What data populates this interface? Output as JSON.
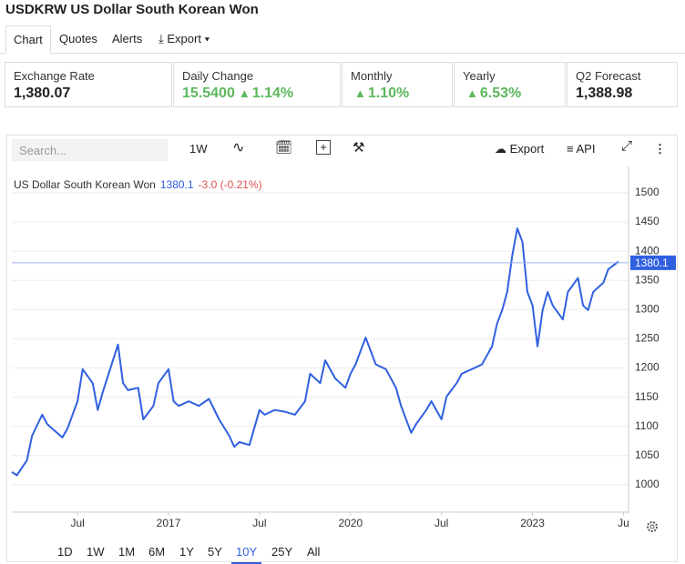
{
  "header": {
    "title": "USDKRW US Dollar South Korean Won"
  },
  "tabs": [
    "Chart",
    "Quotes",
    "Alerts",
    "Export"
  ],
  "stats": [
    {
      "label": "Exchange Rate",
      "value": "1,380.07"
    },
    {
      "label": "Daily Change",
      "value": "15.5400",
      "change": "1.14%"
    },
    {
      "label": "Monthly",
      "change": "1.10%"
    },
    {
      "label": "Yearly",
      "change": "6.53%"
    },
    {
      "label": "Q2 Forecast",
      "value": "1,388.98"
    }
  ],
  "toolbar": {
    "search_placeholder": "Search...",
    "interval": "1W",
    "export": "Export",
    "api": "API"
  },
  "chart_data": {
    "type": "line",
    "x": [
      "2014-06",
      "2014-07",
      "2014-09",
      "2014-10",
      "2014-12",
      "2015-01",
      "2015-02",
      "2015-04",
      "2015-05",
      "2015-07",
      "2015-08",
      "2015-10",
      "2015-11",
      "2015-12",
      "2016-02",
      "2016-03",
      "2016-04",
      "2016-05",
      "2016-07",
      "2016-08",
      "2016-10",
      "2016-11",
      "2017-01",
      "2017-02",
      "2017-03",
      "2017-05",
      "2017-07",
      "2017-09",
      "2017-11",
      "2018-01",
      "2018-02",
      "2018-03",
      "2018-05",
      "2018-07",
      "2018-08",
      "2018-10",
      "2018-12",
      "2019-02",
      "2019-04",
      "2019-05",
      "2019-07",
      "2019-08",
      "2019-10",
      "2019-12",
      "2020-01",
      "2020-02",
      "2020-04",
      "2020-05",
      "2020-06",
      "2020-08",
      "2020-10",
      "2020-11",
      "2021-01",
      "2021-02",
      "2021-04",
      "2021-05",
      "2021-07",
      "2021-08",
      "2021-10",
      "2021-11",
      "2022-01",
      "2022-03",
      "2022-05",
      "2022-06",
      "2022-07",
      "2022-08",
      "2022-09",
      "2022-10",
      "2022-11",
      "2022-12",
      "2023-01",
      "2023-02",
      "2023-03",
      "2023-04",
      "2023-05",
      "2023-07",
      "2023-08",
      "2023-10",
      "2023-11",
      "2023-12",
      "2024-01",
      "2024-03",
      "2024-04",
      "2024-06"
    ],
    "series": [
      {
        "name": "US Dollar South Korean Won",
        "color": "#3060e0",
        "values": [
          1022,
          1016,
          1042,
          1084,
          1120,
          1104,
          1096,
          1081,
          1096,
          1143,
          1198,
          1174,
          1128,
          1159,
          1213,
          1240,
          1174,
          1162,
          1166,
          1112,
          1135,
          1174,
          1198,
          1143,
          1135,
          1143,
          1135,
          1147,
          1112,
          1084,
          1065,
          1073,
          1068,
          1128,
          1120,
          1128,
          1125,
          1120,
          1143,
          1190,
          1174,
          1213,
          1182,
          1166,
          1190,
          1206,
          1252,
          1229,
          1206,
          1198,
          1166,
          1135,
          1089,
          1104,
          1128,
          1143,
          1112,
          1151,
          1174,
          1190,
          1198,
          1206,
          1237,
          1276,
          1299,
          1330,
          1393,
          1439,
          1416,
          1330,
          1307,
          1237,
          1299,
          1330,
          1307,
          1283,
          1330,
          1354,
          1307,
          1299,
          1330,
          1346,
          1369,
          1382
        ]
      }
    ],
    "xlim": [
      "2014-06",
      "2024-08"
    ],
    "xticks": [
      {
        "value": "2015-07",
        "label": "Jul"
      },
      {
        "value": "2017-01",
        "label": "2017"
      },
      {
        "value": "2018-07",
        "label": "Jul"
      },
      {
        "value": "2020-01",
        "label": "2020"
      },
      {
        "value": "2021-07",
        "label": "Jul"
      },
      {
        "value": "2023-01",
        "label": "2023"
      },
      {
        "value": "2024-07",
        "label": "Ju"
      }
    ],
    "ylim": [
      950,
      1545
    ],
    "yticks": [
      1000,
      1050,
      1100,
      1150,
      1200,
      1250,
      1300,
      1350,
      1400,
      1450,
      1500
    ],
    "grid": true,
    "last_value": 1380.1,
    "change": "-3.0 (-0.21%)"
  },
  "ranges": [
    "1D",
    "1W",
    "1M",
    "6M",
    "1Y",
    "5Y",
    "10Y",
    "25Y",
    "All"
  ],
  "active_range_index": 6
}
